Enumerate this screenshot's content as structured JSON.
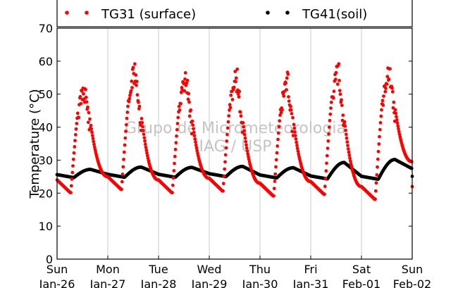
{
  "chart_data": {
    "type": "scatter",
    "ylabel": "Temperature (°C)",
    "ylim": [
      0,
      70
    ],
    "yticks": [
      0,
      10,
      20,
      30,
      40,
      50,
      60,
      70
    ],
    "xlim": [
      0,
      7
    ],
    "xticks": [
      {
        "day": "Sun",
        "date": "Jan-26"
      },
      {
        "day": "Mon",
        "date": "Jan-27"
      },
      {
        "day": "Tue",
        "date": "Jan-28"
      },
      {
        "day": "Wed",
        "date": "Jan-29"
      },
      {
        "day": "Thu",
        "date": "Jan-30"
      },
      {
        "day": "Fri",
        "date": "Jan-31"
      },
      {
        "day": "Sat",
        "date": "Feb-01"
      },
      {
        "day": "Sun",
        "date": "Feb-02"
      }
    ],
    "grid": "vertical",
    "legend_position": "top",
    "watermark": [
      "Grupo de Micrometeorologia",
      "IAG / USP"
    ],
    "series": [
      {
        "name": "TG31 (surface)",
        "color": "#ff0000",
        "daily_extremes": [
          {
            "day_start": "Jan-26",
            "min": 20,
            "max": 55
          },
          {
            "day_start": "Jan-27",
            "min": 21,
            "max": 60
          },
          {
            "day_start": "Jan-28",
            "min": 20,
            "max": 58
          },
          {
            "day_start": "Jan-29",
            "min": 20.5,
            "max": 58.5
          },
          {
            "day_start": "Jan-30",
            "min": 19,
            "max": 57
          },
          {
            "day_start": "Jan-31",
            "min": 19.5,
            "max": 60
          },
          {
            "day_start": "Feb-01",
            "min": 18,
            "max": 60
          }
        ],
        "end_value": 25.5
      },
      {
        "name": "TG41(soil)",
        "color": "#000000",
        "daily_extremes": [
          {
            "day_start": "Jan-26",
            "min": 24.7,
            "max": 27.2
          },
          {
            "day_start": "Jan-27",
            "min": 24.8,
            "max": 27.9
          },
          {
            "day_start": "Jan-28",
            "min": 24.8,
            "max": 27.8
          },
          {
            "day_start": "Jan-29",
            "min": 25.0,
            "max": 28.1
          },
          {
            "day_start": "Jan-30",
            "min": 24.6,
            "max": 27.7
          },
          {
            "day_start": "Jan-31",
            "min": 24.3,
            "max": 29.3
          },
          {
            "day_start": "Feb-01",
            "min": 24.2,
            "max": 30.2
          }
        ],
        "end_value": 26.5
      }
    ]
  }
}
